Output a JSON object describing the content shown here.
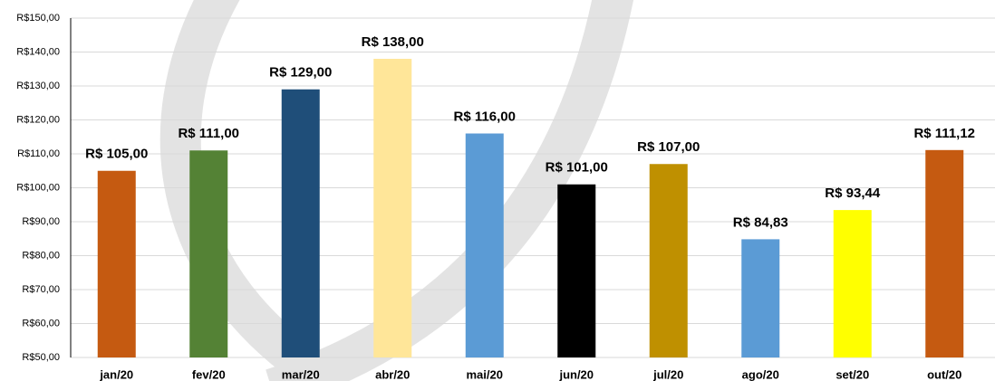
{
  "chart_data": {
    "type": "bar",
    "categories": [
      "jan/20",
      "fev/20",
      "mar/20",
      "abr/20",
      "mai/20",
      "jun/20",
      "jul/20",
      "ago/20",
      "set/20",
      "out/20"
    ],
    "values": [
      105,
      111,
      129,
      138,
      116,
      101,
      107,
      84.83,
      93.44,
      111.12
    ],
    "value_labels": [
      "R$ 105,00",
      "R$ 111,00",
      "R$ 129,00",
      "R$ 138,00",
      "R$ 116,00",
      "R$ 101,00",
      "R$ 107,00",
      "R$ 84,83",
      "R$ 93,44",
      "R$ 111,12"
    ],
    "colors": [
      "#c55a11",
      "#548235",
      "#1f4e79",
      "#ffe699",
      "#5b9bd5",
      "#000000",
      "#bf9000",
      "#5b9bd5",
      "#ffff00",
      "#c55a11"
    ],
    "ylim": [
      50,
      150
    ],
    "yticks": [
      {
        "value": 50,
        "label": "R$50,00"
      },
      {
        "value": 60,
        "label": "R$60,00"
      },
      {
        "value": 70,
        "label": "R$70,00"
      },
      {
        "value": 80,
        "label": "R$80,00"
      },
      {
        "value": 90,
        "label": "R$90,00"
      },
      {
        "value": 100,
        "label": "R$100,00"
      },
      {
        "value": 110,
        "label": "R$110,00"
      },
      {
        "value": 120,
        "label": "R$120,00"
      },
      {
        "value": 130,
        "label": "R$130,00"
      },
      {
        "value": 140,
        "label": "R$140,00"
      },
      {
        "value": 150,
        "label": "R$150,00"
      }
    ],
    "grid": true
  }
}
